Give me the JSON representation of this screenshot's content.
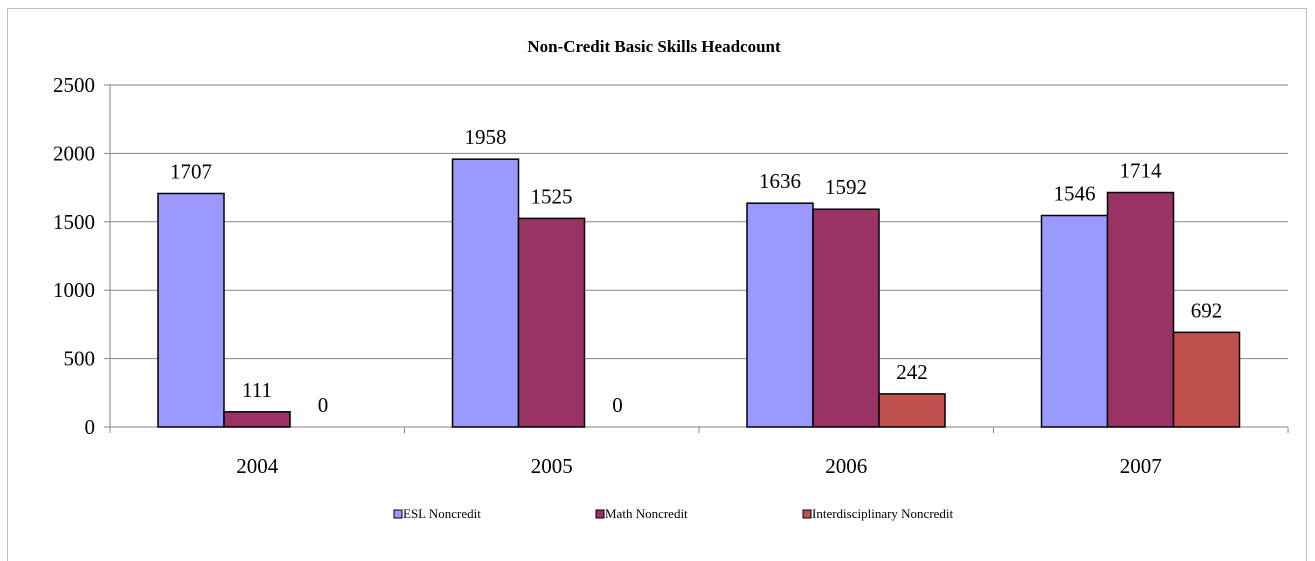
{
  "chart_data": {
    "type": "bar",
    "title": "Non-Credit Basic Skills Headcount",
    "categories": [
      "2004",
      "2005",
      "2006",
      "2007"
    ],
    "series": [
      {
        "name": "ESL Noncredit",
        "color": "#9999ff",
        "values": [
          1707,
          1958,
          1636,
          1546
        ]
      },
      {
        "name": "Math Noncredit",
        "color": "#993366",
        "values": [
          111,
          1525,
          1592,
          1714
        ]
      },
      {
        "name": "Interdisciplinary Noncredit",
        "color": "#c0504d",
        "values": [
          0,
          0,
          242,
          692
        ]
      }
    ],
    "ylim": [
      0,
      2500
    ],
    "yticks": [
      0,
      500,
      1000,
      1500,
      2000,
      2500
    ],
    "xlabel": "",
    "ylabel": "",
    "grid": true,
    "legend_position": "bottom"
  }
}
